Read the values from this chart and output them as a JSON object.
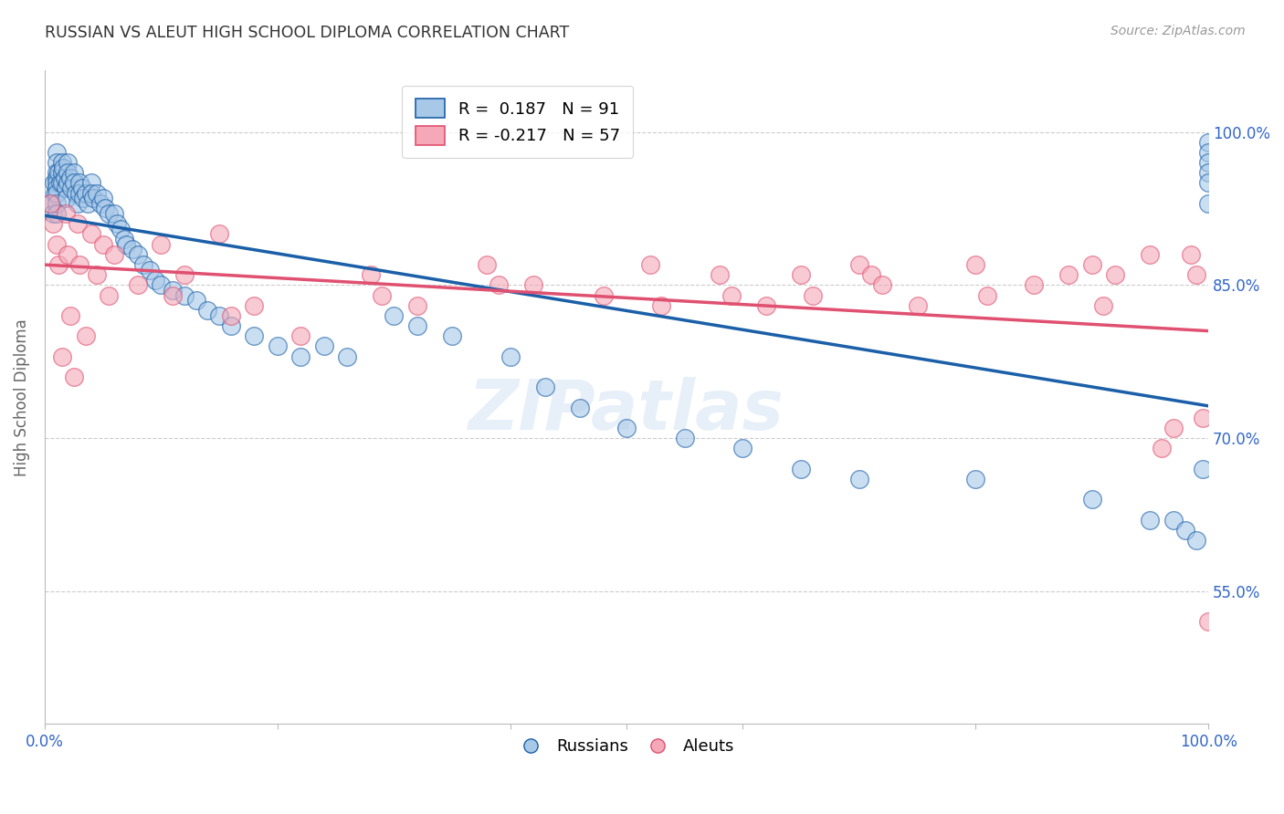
{
  "title": "RUSSIAN VS ALEUT HIGH SCHOOL DIPLOMA CORRELATION CHART",
  "source": "Source: ZipAtlas.com",
  "ylabel": "High School Diploma",
  "ytick_labels": [
    "55.0%",
    "70.0%",
    "85.0%",
    "100.0%"
  ],
  "ytick_values": [
    0.55,
    0.7,
    0.85,
    1.0
  ],
  "russian_color": "#A8C8E8",
  "aleut_color": "#F4A8B8",
  "russian_line_color": "#1A5FA8",
  "aleut_line_color": "#E05070",
  "grid_color": "#CCCCCC",
  "title_color": "#333333",
  "axis_label_color": "#666666",
  "tick_label_color": "#3366CC",
  "watermark": "ZIPatlas",
  "background_color": "#FFFFFF",
  "russian_x": [
    0.005,
    0.007,
    0.008,
    0.009,
    0.01,
    0.01,
    0.01,
    0.01,
    0.01,
    0.01,
    0.01,
    0.01,
    0.01,
    0.012,
    0.013,
    0.015,
    0.015,
    0.015,
    0.016,
    0.017,
    0.018,
    0.019,
    0.02,
    0.02,
    0.02,
    0.022,
    0.023,
    0.025,
    0.025,
    0.027,
    0.028,
    0.03,
    0.03,
    0.032,
    0.033,
    0.035,
    0.037,
    0.04,
    0.04,
    0.042,
    0.045,
    0.048,
    0.05,
    0.052,
    0.055,
    0.06,
    0.062,
    0.065,
    0.068,
    0.07,
    0.075,
    0.08,
    0.085,
    0.09,
    0.095,
    0.1,
    0.11,
    0.12,
    0.13,
    0.14,
    0.15,
    0.16,
    0.18,
    0.2,
    0.22,
    0.24,
    0.26,
    0.3,
    0.32,
    0.35,
    0.4,
    0.43,
    0.46,
    0.5,
    0.55,
    0.6,
    0.65,
    0.7,
    0.8,
    0.9,
    0.95,
    0.97,
    0.98,
    0.99,
    0.995,
    1.0,
    1.0,
    1.0,
    1.0,
    1.0,
    1.0
  ],
  "russian_y": [
    0.93,
    0.92,
    0.95,
    0.94,
    0.98,
    0.97,
    0.96,
    0.955,
    0.95,
    0.945,
    0.94,
    0.93,
    0.92,
    0.96,
    0.95,
    0.97,
    0.96,
    0.95,
    0.965,
    0.955,
    0.945,
    0.935,
    0.97,
    0.96,
    0.95,
    0.955,
    0.945,
    0.96,
    0.95,
    0.94,
    0.93,
    0.95,
    0.94,
    0.945,
    0.935,
    0.94,
    0.93,
    0.95,
    0.94,
    0.935,
    0.94,
    0.93,
    0.935,
    0.925,
    0.92,
    0.92,
    0.91,
    0.905,
    0.895,
    0.89,
    0.885,
    0.88,
    0.87,
    0.865,
    0.855,
    0.85,
    0.845,
    0.84,
    0.835,
    0.825,
    0.82,
    0.81,
    0.8,
    0.79,
    0.78,
    0.79,
    0.78,
    0.82,
    0.81,
    0.8,
    0.78,
    0.75,
    0.73,
    0.71,
    0.7,
    0.69,
    0.67,
    0.66,
    0.66,
    0.64,
    0.62,
    0.62,
    0.61,
    0.6,
    0.67,
    0.99,
    0.98,
    0.97,
    0.96,
    0.95,
    0.93
  ],
  "aleut_x": [
    0.005,
    0.007,
    0.01,
    0.012,
    0.015,
    0.018,
    0.02,
    0.022,
    0.025,
    0.028,
    0.03,
    0.035,
    0.04,
    0.045,
    0.05,
    0.055,
    0.06,
    0.08,
    0.1,
    0.11,
    0.12,
    0.15,
    0.16,
    0.18,
    0.22,
    0.28,
    0.29,
    0.32,
    0.38,
    0.39,
    0.42,
    0.48,
    0.52,
    0.53,
    0.58,
    0.59,
    0.62,
    0.65,
    0.66,
    0.7,
    0.71,
    0.72,
    0.75,
    0.8,
    0.81,
    0.85,
    0.88,
    0.9,
    0.91,
    0.92,
    0.95,
    0.96,
    0.97,
    0.985,
    0.99,
    0.995,
    1.0
  ],
  "aleut_y": [
    0.93,
    0.91,
    0.89,
    0.87,
    0.78,
    0.92,
    0.88,
    0.82,
    0.76,
    0.91,
    0.87,
    0.8,
    0.9,
    0.86,
    0.89,
    0.84,
    0.88,
    0.85,
    0.89,
    0.84,
    0.86,
    0.9,
    0.82,
    0.83,
    0.8,
    0.86,
    0.84,
    0.83,
    0.87,
    0.85,
    0.85,
    0.84,
    0.87,
    0.83,
    0.86,
    0.84,
    0.83,
    0.86,
    0.84,
    0.87,
    0.86,
    0.85,
    0.83,
    0.87,
    0.84,
    0.85,
    0.86,
    0.87,
    0.83,
    0.86,
    0.88,
    0.69,
    0.71,
    0.88,
    0.86,
    0.72,
    0.52
  ]
}
